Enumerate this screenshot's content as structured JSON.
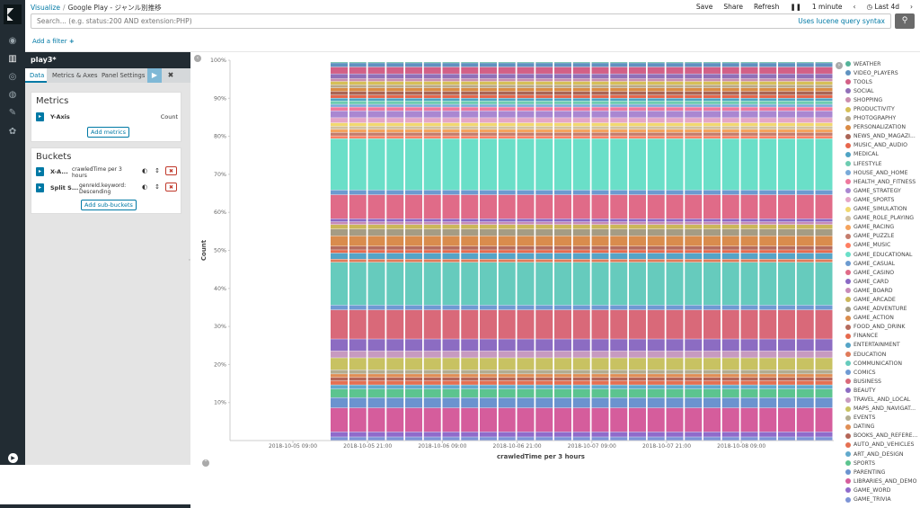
{
  "breadcrumb": {
    "root": "Visualize",
    "sep": "/",
    "current": "Google Play - ジャンル別推移"
  },
  "top_actions": {
    "save": "Save",
    "share": "Share",
    "refresh": "Refresh",
    "interval": "1 minute",
    "time_range": "Last 4d"
  },
  "search": {
    "placeholder": "Search... (e.g. status:200 AND extension:PHP)",
    "lucene": "Uses lucene query syntax"
  },
  "filter": {
    "add": "Add a filter"
  },
  "sidebar": {
    "title": "play3*",
    "tabs": [
      "Data",
      "Metrics & Axes",
      "Panel Settings"
    ],
    "metrics_heading": "Metrics",
    "metric": {
      "name": "Y-Axis",
      "agg": "Count"
    },
    "add_metrics": "Add metrics",
    "buckets_heading": "Buckets",
    "bucket_x": {
      "name": "X-A...",
      "desc": "crawledTime per 3 hours"
    },
    "bucket_split": {
      "name": "Split S...",
      "desc": "genreId.keyword: Descending"
    },
    "add_sub_buckets": "Add sub-buckets"
  },
  "colors": {
    "nav_bg": "#222c33",
    "accent": "#0079a5"
  },
  "chart_data": {
    "type": "bar",
    "stacked": "percent",
    "xlabel": "crawledTime per 3 hours",
    "ylabel": "Count",
    "ylim": [
      0,
      100
    ],
    "yticks": [
      "10%",
      "20%",
      "30%",
      "40%",
      "50%",
      "60%",
      "70%",
      "80%",
      "90%",
      "100%"
    ],
    "xticks": [
      "2018-10-05 09:00",
      "2018-10-05 21:00",
      "2018-10-06 09:00",
      "2018-10-06 21:00",
      "2018-10-07 09:00",
      "2018-10-07 21:00",
      "2018-10-08 09:00"
    ],
    "bars": 27,
    "series": [
      {
        "name": "WEATHER",
        "color": "#54b399",
        "pct": 0.3
      },
      {
        "name": "VIDEO_PLAYERS",
        "color": "#6092c0",
        "pct": 1.2
      },
      {
        "name": "TOOLS",
        "color": "#d36086",
        "pct": 2.0
      },
      {
        "name": "SOCIAL",
        "color": "#9170b8",
        "pct": 1.4
      },
      {
        "name": "SHOPPING",
        "color": "#ca8eae",
        "pct": 0.8
      },
      {
        "name": "PRODUCTIVITY",
        "color": "#d6bf57",
        "pct": 1.0
      },
      {
        "name": "PHOTOGRAPHY",
        "color": "#b9a888",
        "pct": 0.9
      },
      {
        "name": "PERSONALIZATION",
        "color": "#da8b45",
        "pct": 1.0
      },
      {
        "name": "NEWS_AND_MAGAZI...",
        "color": "#aa6556",
        "pct": 1.1
      },
      {
        "name": "MUSIC_AND_AUDIO",
        "color": "#e7664c",
        "pct": 0.9
      },
      {
        "name": "MEDICAL",
        "color": "#4fa3c4",
        "pct": 0.8
      },
      {
        "name": "LIFESTYLE",
        "color": "#6dccb1",
        "pct": 1.0
      },
      {
        "name": "HOUSE_AND_HOME",
        "color": "#79aad9",
        "pct": 0.8
      },
      {
        "name": "HEALTH_AND_FITNESS",
        "color": "#ee789d",
        "pct": 1.1
      },
      {
        "name": "GAME_STRATEGY",
        "color": "#a987d1",
        "pct": 2.0
      },
      {
        "name": "GAME_SPORTS",
        "color": "#e4a6c7",
        "pct": 1.5
      },
      {
        "name": "GAME_SIMULATION",
        "color": "#f1d86f",
        "pct": 1.0
      },
      {
        "name": "GAME_ROLE_PLAYING",
        "color": "#d2c0a0",
        "pct": 0.9
      },
      {
        "name": "GAME_RACING",
        "color": "#f5a35c",
        "pct": 0.9
      },
      {
        "name": "GAME_PUZZLE",
        "color": "#c47c6c",
        "pct": 1.0
      },
      {
        "name": "GAME_MUSIC",
        "color": "#ff7e62",
        "pct": 0.8
      },
      {
        "name": "GAME_EDUCATIONAL",
        "color": "#6adfc8",
        "pct": 15.0
      },
      {
        "name": "GAME_CASUAL",
        "color": "#6c9bd0",
        "pct": 1.4
      },
      {
        "name": "GAME_CASINO",
        "color": "#e06b88",
        "pct": 7.0
      },
      {
        "name": "GAME_CARD",
        "color": "#8a69c4",
        "pct": 0.9
      },
      {
        "name": "GAME_BOARD",
        "color": "#c78bb8",
        "pct": 0.8
      },
      {
        "name": "GAME_ARCADE",
        "color": "#cbb65a",
        "pct": 1.3
      },
      {
        "name": "GAME_ADVENTURE",
        "color": "#a59c84",
        "pct": 2.0
      },
      {
        "name": "GAME_ACTION",
        "color": "#d98c4d",
        "pct": 3.0
      },
      {
        "name": "FOOD_AND_DRINK",
        "color": "#b56b5d",
        "pct": 1.1
      },
      {
        "name": "FINANCE",
        "color": "#e66a4d",
        "pct": 0.9
      },
      {
        "name": "ENTERTAINMENT",
        "color": "#55a4c7",
        "pct": 1.8
      },
      {
        "name": "EDUCATION",
        "color": "#e07b5a",
        "pct": 0.9
      },
      {
        "name": "COMMUNICATION",
        "color": "#66cbbd",
        "pct": 12.5
      },
      {
        "name": "COMICS",
        "color": "#6f9ad3",
        "pct": 1.4
      },
      {
        "name": "BUSINESS",
        "color": "#d96979",
        "pct": 8.5
      },
      {
        "name": "BEAUTY",
        "color": "#8c6cc2",
        "pct": 3.5
      },
      {
        "name": "TRAVEL_AND_LOCAL",
        "color": "#c79ac0",
        "pct": 2.0
      },
      {
        "name": "MAPS_AND_NAVIGAT...",
        "color": "#c8c262",
        "pct": 3.5
      },
      {
        "name": "EVENTS",
        "color": "#b3ad91",
        "pct": 1.2
      },
      {
        "name": "DATING",
        "color": "#e08e55",
        "pct": 1.0
      },
      {
        "name": "BOOKS_AND_REFERE...",
        "color": "#b46658",
        "pct": 1.0
      },
      {
        "name": "AUTO_AND_VEHICLES",
        "color": "#e57052",
        "pct": 1.2
      },
      {
        "name": "ART_AND_DESIGN",
        "color": "#62a9cc",
        "pct": 1.2
      },
      {
        "name": "SPORTS",
        "color": "#5cc48f",
        "pct": 2.5
      },
      {
        "name": "PARENTING",
        "color": "#6b93cf",
        "pct": 3.0
      },
      {
        "name": "LIBRARIES_AND_DEMO",
        "color": "#d55d9c",
        "pct": 7.0
      },
      {
        "name": "GAME_WORD",
        "color": "#8f6bcb",
        "pct": 1.5
      },
      {
        "name": "GAME_TRIVIA",
        "color": "#7d94d6",
        "pct": 1.0
      }
    ]
  }
}
